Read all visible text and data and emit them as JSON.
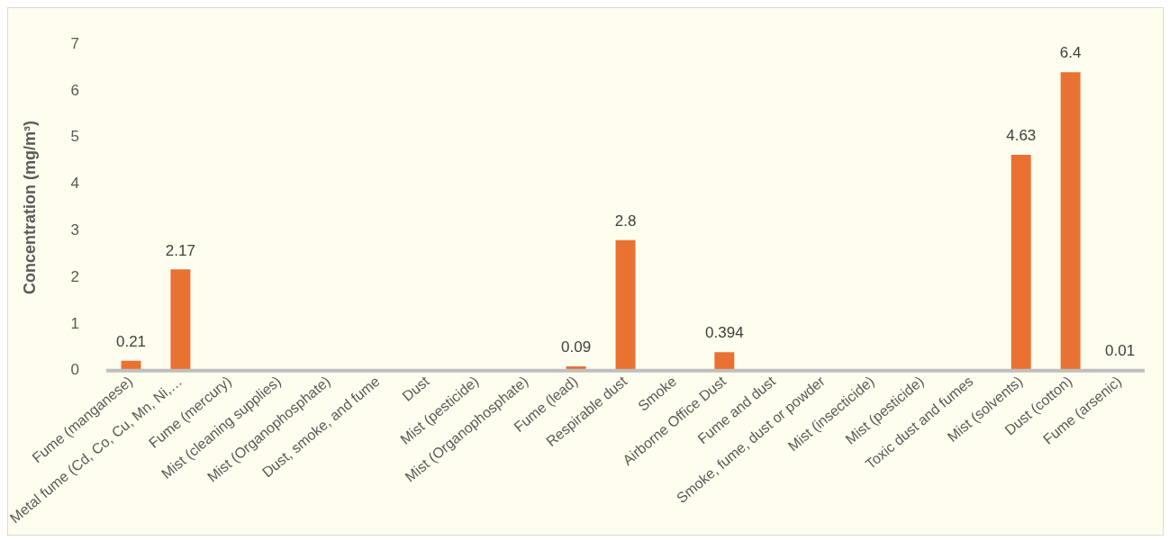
{
  "chart_data": {
    "type": "bar",
    "ylabel": "Concentration (mg/m³)",
    "categories": [
      "Fume (manganese)",
      "Metal fume (Cd, Co, Cu, Mn, Ni,…",
      "Fume (mercury)",
      "Mist (cleaning supplies)",
      "Mist (Organophosphate)",
      "Dust, smoke, and fume",
      "Dust",
      "Mist (pesticide)",
      "Mist (Organophosphate)",
      "Fume (lead)",
      "Respirable dust",
      "Smoke",
      "Airborne Office Dust",
      "Fume and dust",
      "Smoke, fume, dust or powder",
      "Mist (insecticide)",
      "Mist (pesticide)",
      "Toxic dust and fumes",
      "Mist (solvents)",
      "Dust (cotton)",
      "Fume (arsenic)"
    ],
    "values": [
      0.21,
      2.17,
      null,
      null,
      null,
      null,
      null,
      null,
      null,
      0.09,
      2.8,
      null,
      0.394,
      null,
      null,
      null,
      null,
      null,
      4.63,
      6.4,
      0.01
    ],
    "color": "#e97132",
    "ylim": [
      0,
      7
    ],
    "yticks": [
      0,
      1,
      2,
      3,
      4,
      5,
      6,
      7
    ],
    "data_labels": true,
    "grid": false,
    "legend": false
  }
}
